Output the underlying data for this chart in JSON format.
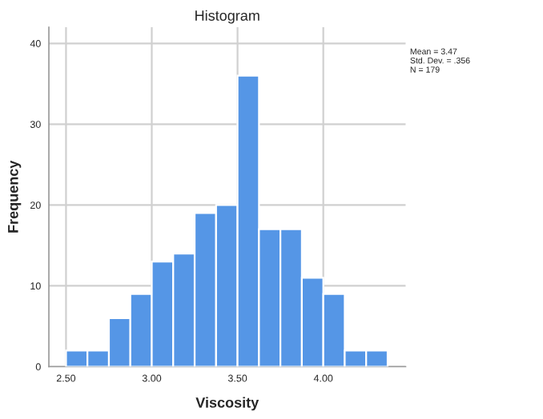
{
  "chart_data": {
    "type": "histogram",
    "title": "Histogram",
    "xlabel": "Viscosity",
    "ylabel": "Frequency",
    "bins": [
      2.5,
      2.625,
      2.75,
      2.875,
      3.0,
      3.125,
      3.25,
      3.375,
      3.5,
      3.625,
      3.75,
      3.875,
      4.0,
      4.125,
      4.25,
      4.375
    ],
    "values": [
      2,
      2,
      6,
      9,
      13,
      14,
      19,
      20,
      36,
      17,
      17,
      11,
      9,
      2,
      2
    ],
    "color": "#5596e6",
    "xlim": [
      2.4,
      4.48
    ],
    "xticks": [
      {
        "value": 2.5,
        "label": "2.50"
      },
      {
        "value": 3.0,
        "label": "3.00"
      },
      {
        "value": 3.5,
        "label": "3.50"
      },
      {
        "value": 4.0,
        "label": "4.00"
      }
    ],
    "ylim": [
      0,
      42
    ],
    "yticks": [
      0,
      10,
      20,
      30,
      40
    ],
    "grid": true,
    "annotations": [
      "Mean = 3.47\nStd. Dev. = .356\nN = 179"
    ]
  }
}
